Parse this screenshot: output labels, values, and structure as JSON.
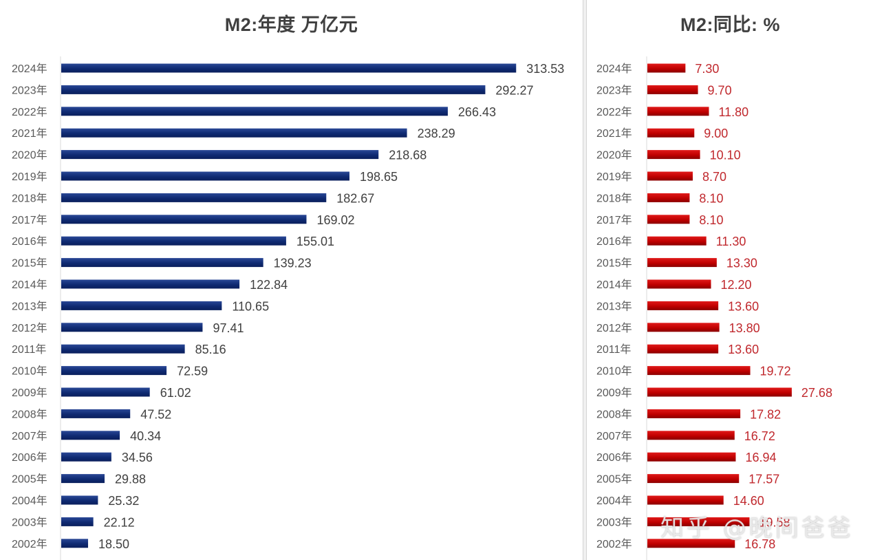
{
  "chart_data": [
    {
      "type": "bar",
      "orientation": "horizontal",
      "title": "M2:年度 万亿元",
      "xlabel": "",
      "ylabel": "",
      "color": "#0f2a72",
      "grid": false,
      "legend": "none",
      "xlim": [
        0,
        330
      ],
      "categories": [
        "2024年",
        "2023年",
        "2022年",
        "2021年",
        "2020年",
        "2019年",
        "2018年",
        "2017年",
        "2016年",
        "2015年",
        "2014年",
        "2013年",
        "2012年",
        "2011年",
        "2010年",
        "2009年",
        "2008年",
        "2007年",
        "2006年",
        "2005年",
        "2004年",
        "2003年",
        "2002年"
      ],
      "values": [
        313.53,
        292.27,
        266.43,
        238.29,
        218.68,
        198.65,
        182.67,
        169.02,
        155.01,
        139.23,
        122.84,
        110.65,
        97.41,
        85.16,
        72.59,
        61.02,
        47.52,
        40.34,
        34.56,
        29.88,
        25.32,
        22.12,
        18.5
      ],
      "labels": [
        "313.53",
        "292.27",
        "266.43",
        "238.29",
        "218.68",
        "198.65",
        "182.67",
        "169.02",
        "155.01",
        "139.23",
        "122.84",
        "110.65",
        "97.41",
        "85.16",
        "72.59",
        "61.02",
        "47.52",
        "40.34",
        "34.56",
        "29.88",
        "25.32",
        "22.12",
        "18.50"
      ]
    },
    {
      "type": "bar",
      "orientation": "horizontal",
      "title": "M2:同比: %",
      "xlabel": "",
      "ylabel": "",
      "color": "#c00000",
      "label_color": "#c0282d",
      "grid": false,
      "legend": "none",
      "xlim": [
        0,
        36
      ],
      "categories": [
        "2024年",
        "2023年",
        "2022年",
        "2021年",
        "2020年",
        "2019年",
        "2018年",
        "2017年",
        "2016年",
        "2015年",
        "2014年",
        "2013年",
        "2012年",
        "2011年",
        "2010年",
        "2009年",
        "2008年",
        "2007年",
        "2006年",
        "2005年",
        "2004年",
        "2003年",
        "2002年"
      ],
      "values": [
        7.3,
        9.7,
        11.8,
        9.0,
        10.1,
        8.7,
        8.1,
        8.1,
        11.3,
        13.3,
        12.2,
        13.6,
        13.8,
        13.6,
        19.72,
        27.68,
        17.82,
        16.72,
        16.94,
        17.57,
        14.6,
        19.58,
        16.78
      ],
      "labels": [
        "7.30",
        "9.70",
        "11.80",
        "9.00",
        "10.10",
        "8.70",
        "8.10",
        "8.10",
        "11.30",
        "13.30",
        "12.20",
        "13.60",
        "13.80",
        "13.60",
        "19.72",
        "27.68",
        "17.82",
        "16.72",
        "16.94",
        "17.57",
        "14.60",
        "19.58",
        "16.78"
      ]
    }
  ],
  "watermark": "知乎 @晚间爸爸"
}
